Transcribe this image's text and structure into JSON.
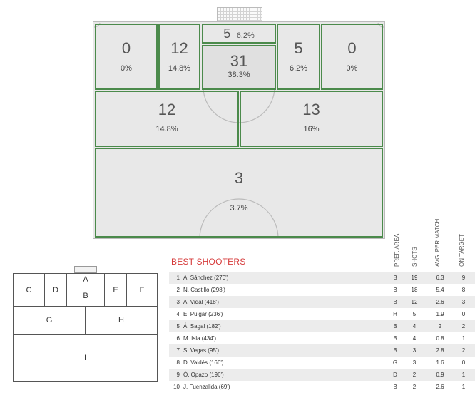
{
  "zones": {
    "c": {
      "count": "0",
      "pct": "0%"
    },
    "d": {
      "count": "12",
      "pct": "14.8%"
    },
    "a": {
      "count": "5",
      "pct": "6.2%"
    },
    "b": {
      "count": "31",
      "pct": "38.3%"
    },
    "e": {
      "count": "5",
      "pct": "6.2%"
    },
    "f": {
      "count": "0",
      "pct": "0%"
    },
    "g": {
      "count": "12",
      "pct": "14.8%"
    },
    "h": {
      "count": "13",
      "pct": "16%"
    },
    "i": {
      "count": "3",
      "pct": "3.7%"
    }
  },
  "legend": {
    "a": "A",
    "b": "B",
    "c": "C",
    "d": "D",
    "e": "E",
    "f": "F",
    "g": "G",
    "h": "H",
    "i": "I"
  },
  "best_shooters": {
    "title": "BEST SHOOTERS",
    "columns": {
      "area": "PREF. AREA",
      "shots": "SHOTS",
      "avg": "AVG. PER MATCH",
      "on_target": "ON TARGET"
    },
    "rows": [
      {
        "rank": "1",
        "name": "A. Sánchez  (270')",
        "area": "B",
        "shots": "19",
        "avg": "6.3",
        "on_target": "9"
      },
      {
        "rank": "2",
        "name": "N. Castillo  (298')",
        "area": "B",
        "shots": "18",
        "avg": "5.4",
        "on_target": "8"
      },
      {
        "rank": "3",
        "name": "A. Vidal  (418')",
        "area": "B",
        "shots": "12",
        "avg": "2.6",
        "on_target": "3"
      },
      {
        "rank": "4",
        "name": "E. Pulgar  (236')",
        "area": "H",
        "shots": "5",
        "avg": "1.9",
        "on_target": "0"
      },
      {
        "rank": "5",
        "name": "Á. Sagal  (182')",
        "area": "B",
        "shots": "4",
        "avg": "2",
        "on_target": "2"
      },
      {
        "rank": "6",
        "name": "M. Isla  (434')",
        "area": "B",
        "shots": "4",
        "avg": "0.8",
        "on_target": "1"
      },
      {
        "rank": "7",
        "name": "S. Vegas  (95')",
        "area": "B",
        "shots": "3",
        "avg": "2.8",
        "on_target": "2"
      },
      {
        "rank": "8",
        "name": "D. Valdés  (166')",
        "area": "G",
        "shots": "3",
        "avg": "1.6",
        "on_target": "0"
      },
      {
        "rank": "9",
        "name": "Ó. Opazo  (196')",
        "area": "D",
        "shots": "2",
        "avg": "0.9",
        "on_target": "1"
      },
      {
        "rank": "10",
        "name": "J. Fuenzalida  (69')",
        "area": "B",
        "shots": "2",
        "avg": "2.6",
        "on_target": "1"
      }
    ]
  }
}
